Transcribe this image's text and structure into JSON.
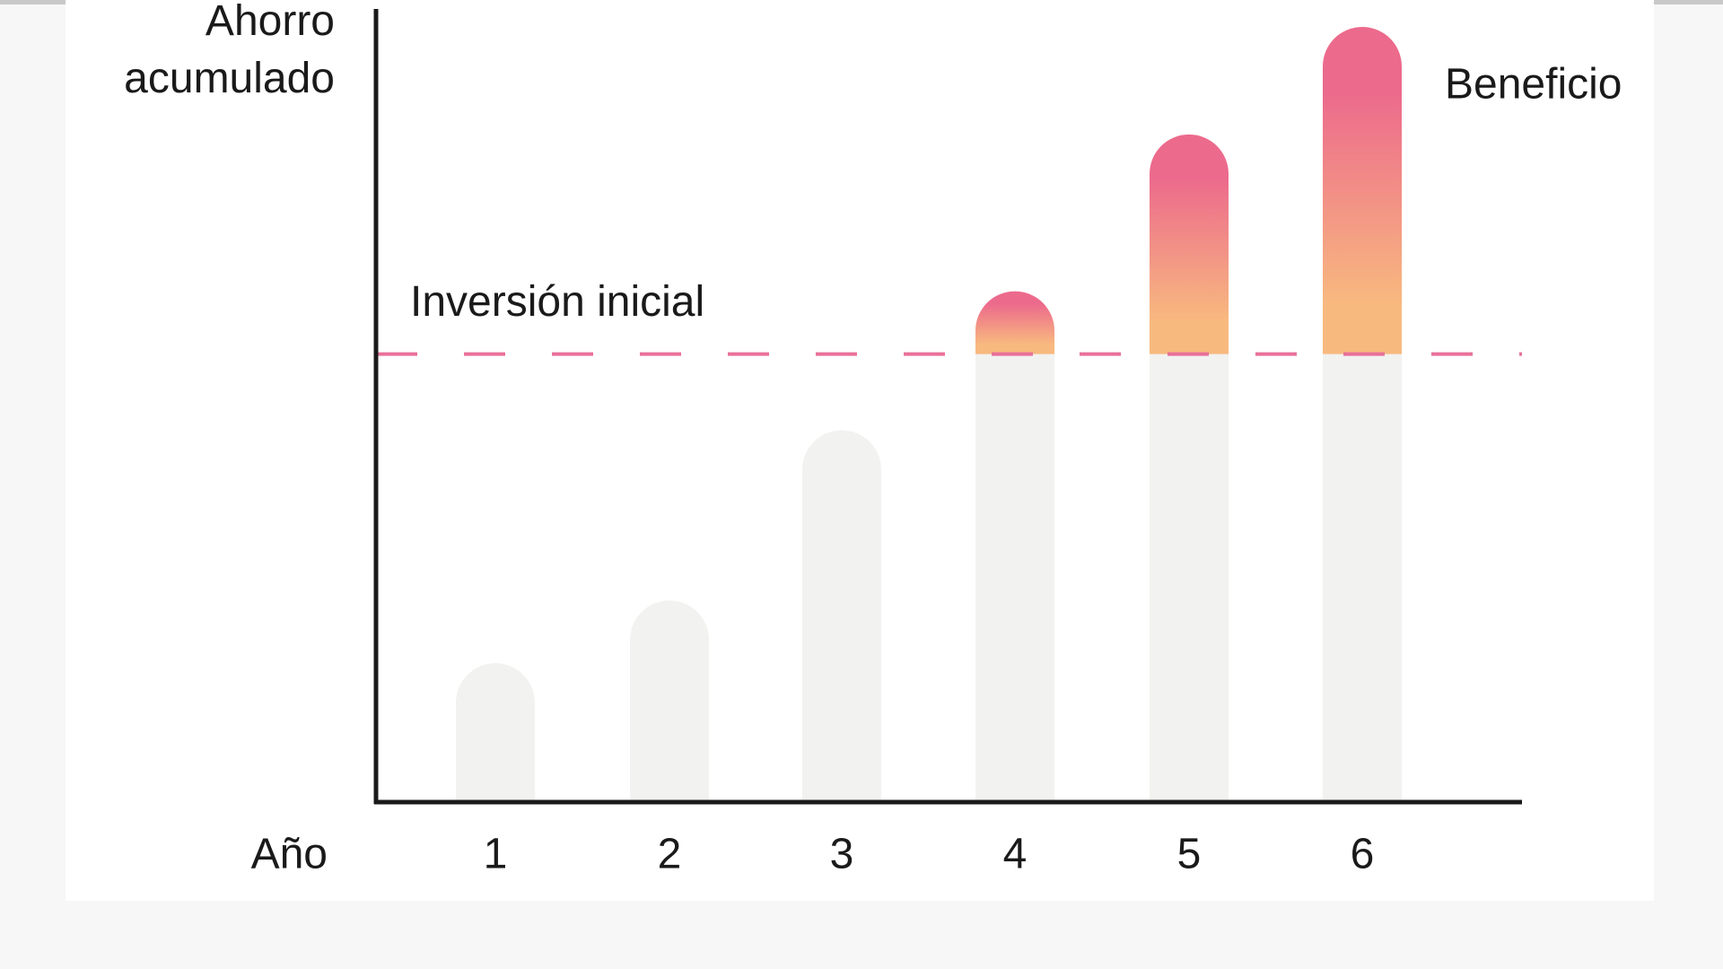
{
  "chart_data": {
    "type": "bar",
    "ylabel": "Ahorro acumulado",
    "xlabel": "Año",
    "categories": [
      "1",
      "2",
      "3",
      "4",
      "5",
      "6"
    ],
    "values": [
      31,
      45,
      83,
      114,
      149,
      173
    ],
    "color": "#f2f2f0",
    "above_colors": [
      "#ec6a8c",
      "#f8b97f"
    ],
    "ylim": [
      0,
      177
    ],
    "reference": {
      "label": "Inversión inicial",
      "value": 100,
      "color": "#e8709a"
    },
    "annotation": {
      "text": "Beneficio",
      "color": "#e8709a"
    }
  }
}
